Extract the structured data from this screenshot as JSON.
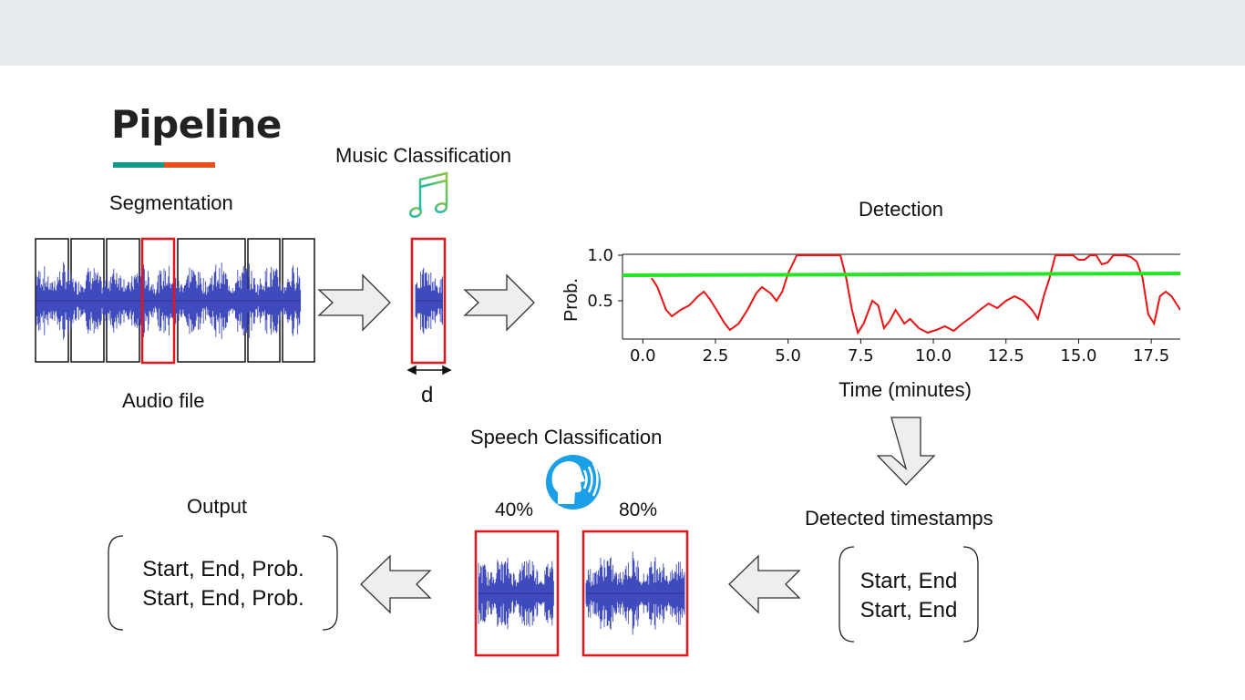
{
  "title": "Pipeline",
  "stages": {
    "segmentation": "Segmentation",
    "audio_file": "Audio file",
    "music_classification": "Music Classification",
    "duration_label": "d",
    "detection": "Detection",
    "detected_timestamps": "Detected timestamps",
    "speech_classification": "Speech Classification",
    "output": "Output"
  },
  "speech_scores": {
    "left": "40%",
    "right": "80%"
  },
  "timestamps_box": {
    "line1": "Start, End",
    "line2": "Start, End"
  },
  "output_box": {
    "line1": "Start, End, Prob.",
    "line2": "Start, End, Prob."
  },
  "icons": [
    "music-note-icon",
    "speaking-head-icon",
    "right-arrow-icon",
    "down-arrow-icon",
    "left-arrow-icon"
  ],
  "colors": {
    "waveform": "#3f4bbd",
    "highlight": "#e8141c",
    "threshold": "#22e622",
    "probability": "#ee1111",
    "accent_teal": "#14998a",
    "accent_orange": "#ea4f1b"
  },
  "chart_data": {
    "type": "line",
    "title": "Detection",
    "xlabel": "Time (minutes)",
    "ylabel": "Prob.",
    "xlim": [
      -0.7,
      18.5
    ],
    "ylim": [
      0.08,
      1.1
    ],
    "xticks": [
      "0.0",
      "2.5",
      "5.0",
      "7.5",
      "10.0",
      "12.5",
      "15.0",
      "17.5"
    ],
    "yticks": [
      "0.5",
      "1.0"
    ],
    "grid": false,
    "series": [
      {
        "x": [
          0.3,
          0.5,
          0.8,
          1.0,
          1.3,
          1.6,
          1.9,
          2.1,
          2.3,
          2.5,
          2.8,
          3.0,
          3.3,
          3.6,
          3.9,
          4.1,
          4.4,
          4.6,
          4.8,
          5.0,
          5.3,
          5.6,
          5.9,
          6.2,
          6.5,
          6.8,
          7.0,
          7.2,
          7.4,
          7.6,
          7.9,
          8.1,
          8.3,
          8.5,
          8.7,
          9.0,
          9.2,
          9.5,
          9.8,
          10.1,
          10.4,
          10.7,
          11.0,
          11.3,
          11.6,
          11.9,
          12.2,
          12.5,
          12.8,
          13.1,
          13.4,
          13.6,
          13.8,
          14.0,
          14.2,
          14.4,
          14.6,
          14.8,
          15.0,
          15.2,
          15.4,
          15.6,
          15.8,
          16.0,
          16.2,
          16.4,
          16.6,
          16.8,
          17.0,
          17.2,
          17.4,
          17.6,
          17.8,
          18.0,
          18.2,
          18.4,
          18.5
        ],
        "y": [
          0.75,
          0.65,
          0.4,
          0.33,
          0.4,
          0.45,
          0.55,
          0.6,
          0.52,
          0.42,
          0.26,
          0.18,
          0.25,
          0.4,
          0.58,
          0.65,
          0.58,
          0.5,
          0.6,
          0.8,
          1.0,
          1.0,
          1.0,
          1.0,
          1.0,
          1.0,
          0.75,
          0.4,
          0.15,
          0.25,
          0.5,
          0.45,
          0.2,
          0.28,
          0.4,
          0.25,
          0.3,
          0.2,
          0.15,
          0.18,
          0.22,
          0.17,
          0.25,
          0.32,
          0.4,
          0.47,
          0.42,
          0.5,
          0.55,
          0.5,
          0.4,
          0.3,
          0.55,
          0.75,
          1.0,
          1.0,
          1.0,
          1.0,
          0.95,
          0.95,
          1.0,
          1.0,
          0.9,
          0.92,
          1.0,
          1.0,
          1.0,
          0.98,
          0.93,
          0.75,
          0.35,
          0.25,
          0.55,
          0.6,
          0.55,
          0.45,
          0.4
        ],
        "color": "#ee1111"
      },
      {
        "x": [
          -0.7,
          18.5
        ],
        "y": [
          0.78,
          0.8
        ],
        "color": "#22e622"
      }
    ]
  }
}
